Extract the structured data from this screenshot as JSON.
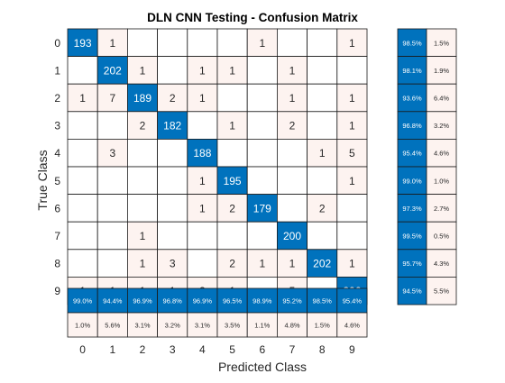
{
  "chart_data": {
    "type": "heatmap",
    "title": "DLN CNN Testing - Confusion Matrix",
    "xlabel": "Predicted Class",
    "ylabel": "True Class",
    "classes": [
      "0",
      "1",
      "2",
      "3",
      "4",
      "5",
      "6",
      "7",
      "8",
      "9"
    ],
    "matrix": [
      [
        193,
        1,
        0,
        0,
        0,
        0,
        1,
        0,
        0,
        1
      ],
      [
        0,
        202,
        1,
        0,
        1,
        1,
        0,
        1,
        0,
        0
      ],
      [
        1,
        7,
        189,
        2,
        1,
        0,
        0,
        1,
        0,
        1
      ],
      [
        0,
        0,
        2,
        182,
        0,
        1,
        0,
        2,
        0,
        1
      ],
      [
        0,
        3,
        0,
        0,
        188,
        0,
        0,
        0,
        1,
        5
      ],
      [
        0,
        0,
        0,
        0,
        1,
        195,
        0,
        0,
        0,
        1
      ],
      [
        0,
        0,
        0,
        0,
        1,
        2,
        179,
        0,
        2,
        0
      ],
      [
        0,
        0,
        1,
        0,
        0,
        0,
        0,
        200,
        0,
        0
      ],
      [
        0,
        0,
        1,
        3,
        0,
        2,
        1,
        1,
        202,
        1
      ],
      [
        1,
        1,
        1,
        1,
        2,
        1,
        0,
        5,
        0,
        206
      ]
    ],
    "row_summary": [
      [
        "98.5%",
        "1.5%"
      ],
      [
        "98.1%",
        "1.9%"
      ],
      [
        "93.6%",
        "6.4%"
      ],
      [
        "96.8%",
        "3.2%"
      ],
      [
        "95.4%",
        "4.6%"
      ],
      [
        "99.0%",
        "1.0%"
      ],
      [
        "97.3%",
        "2.7%"
      ],
      [
        "99.5%",
        "0.5%"
      ],
      [
        "95.7%",
        "4.3%"
      ],
      [
        "94.5%",
        "5.5%"
      ]
    ],
    "col_summary_correct": [
      "99.0%",
      "94.4%",
      "96.9%",
      "96.8%",
      "96.9%",
      "96.5%",
      "98.9%",
      "95.2%",
      "98.5%",
      "95.4%"
    ],
    "col_summary_incorrect": [
      "1.0%",
      "5.6%",
      "3.1%",
      "3.2%",
      "3.1%",
      "3.5%",
      "1.1%",
      "4.8%",
      "1.5%",
      "4.6%"
    ],
    "colors": {
      "diagonal": "#0072bd",
      "offdiag": "#fdf3f0",
      "empty": "#ffffff",
      "grid": "#1a1a1a",
      "diag_text": "#ffffff",
      "text": "#262626"
    }
  }
}
